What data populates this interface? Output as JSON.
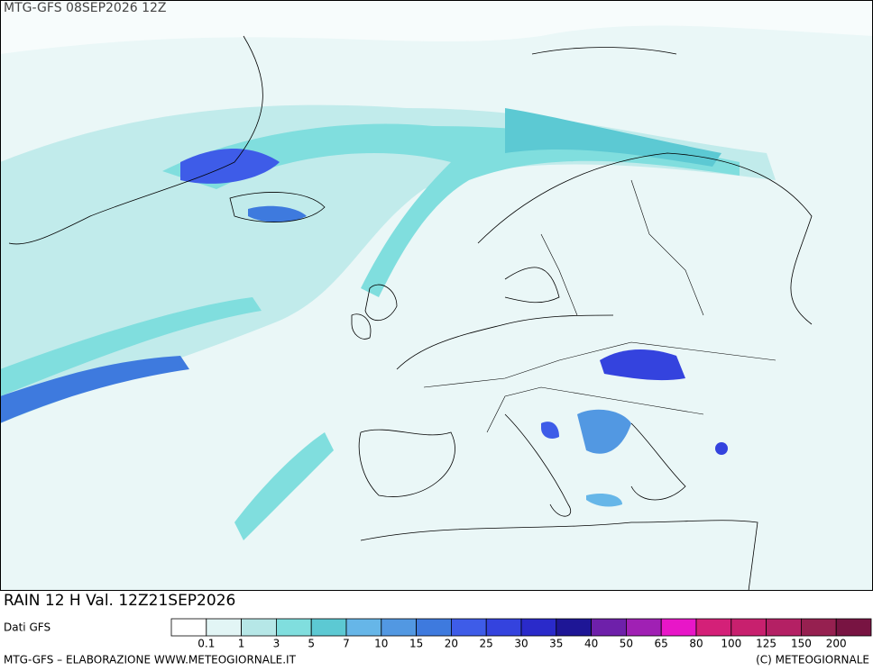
{
  "header": {
    "title": "MTG-GFS 08SEP2026 12Z"
  },
  "caption": "RAIN 12 H Val. 12Z21SEP2026",
  "source": "Dati GFS",
  "legend": {
    "colors": [
      "#ffffff",
      "#e2f5f5",
      "#b6e7e7",
      "#80dede",
      "#5cc9d3",
      "#66b6e8",
      "#5298e2",
      "#3e7ade",
      "#3e5ce8",
      "#3443de",
      "#2a2aca",
      "#1e1696",
      "#6e20aa",
      "#a020b4",
      "#e816c8",
      "#d42078",
      "#c8206e",
      "#b42064",
      "#962050",
      "#781442"
    ],
    "labels": [
      0.1,
      1,
      3,
      5,
      7,
      10,
      15,
      20,
      25,
      30,
      35,
      40,
      50,
      65,
      80,
      100,
      125,
      150,
      200
    ]
  },
  "footer": {
    "left": "MTG-GFS – ELABORAZIONE WWW.METEOGIORNALE.IT",
    "right": "(C) METEOGIORNALE"
  }
}
